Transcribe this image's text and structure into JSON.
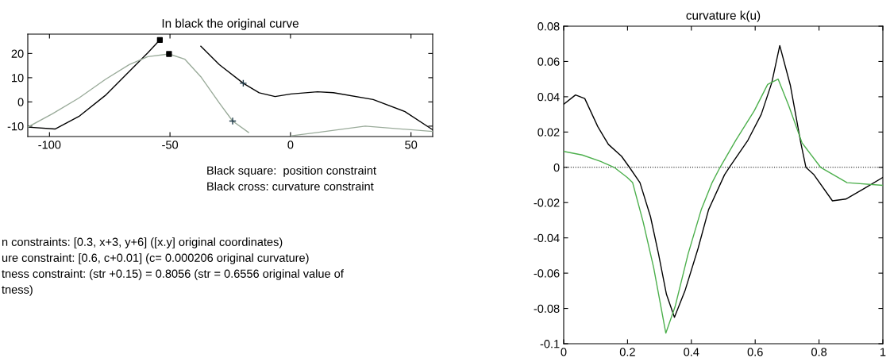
{
  "chart_data": [
    {
      "type": "line",
      "title": "In black the original curve",
      "xlim": [
        -109,
        59
      ],
      "ylim": [
        -14.3,
        28
      ],
      "xticks": [
        -100,
        -50,
        0,
        50
      ],
      "yticks": [
        -10,
        0,
        10,
        20
      ],
      "grid": false,
      "legend": false,
      "series": [
        {
          "color": "#000000",
          "x": [
            -109,
            -97.7,
            -87.8,
            -76.8,
            -66.9,
            -59.2,
            -54.2,
            -50.4,
            -43.8,
            -37.2,
            -29.5,
            -19.6,
            -13,
            -6.4,
            0.2,
            11.2,
            17.8,
            34.3,
            47.5,
            59
          ],
          "values": [
            -10.4,
            -11.2,
            -6,
            2.7,
            12.6,
            20.3,
            25.6,
            null,
            null,
            23,
            15.4,
            7.7,
            3.8,
            2.2,
            3.3,
            4.2,
            3.8,
            1,
            -4,
            -11.5
          ]
        },
        {
          "color": "#9aab9a",
          "x": [
            -109,
            -98.8,
            -87.8,
            -76.8,
            -66.9,
            -59.2,
            -50.4,
            -43.8,
            -37.2,
            -29.5,
            -24,
            -17.4,
            -10.8,
            0.2,
            11.2,
            31,
            59
          ],
          "values": [
            -10.4,
            -4.9,
            1.6,
            9.3,
            15.4,
            18.7,
            19.8,
            17.6,
            10.4,
            -0.5,
            -7.9,
            -12.6,
            null,
            -14,
            -12.6,
            -10,
            -12.2
          ]
        },
        {
          "type": "scatter",
          "marker": "square",
          "color": "#000000",
          "x": [
            -54.2,
            -50.4
          ],
          "values": [
            25.6,
            19.8
          ]
        },
        {
          "type": "scatter",
          "marker": "cross",
          "color": "#1f3a4a",
          "x": [
            -19.6,
            -24
          ],
          "values": [
            7.7,
            -7.9
          ]
        }
      ],
      "annotations": [
        "Black square:  position constraint",
        "Black cross: curvature constraint",
        "n constraints: [0.3, x+3, y+6] ([x.y] original coordinates)",
        "ure constraint: [0.6, c+0.01] (c= 0.000206 original curvature)",
        "tness constraint: (str +0.15) = 0.8056 (str = 0.6556 original value of",
        "tness)"
      ]
    },
    {
      "type": "line",
      "title": "curvature k(u)",
      "xlim": [
        0,
        1
      ],
      "ylim": [
        -0.1,
        0.08
      ],
      "xticks": [
        0,
        {
          "value": 0.2,
          "label": "0.2"
        },
        {
          "value": 0.4,
          "label": "0.4"
        },
        {
          "value": 0.6,
          "label": "0.6"
        },
        {
          "value": 0.8,
          "label": "0.8"
        },
        1
      ],
      "yticks": [
        {
          "value": -0.1,
          "label": "-0.1"
        },
        {
          "value": -0.08,
          "label": "-0.08"
        },
        {
          "value": -0.06,
          "label": "-0.06"
        },
        {
          "value": -0.04,
          "label": "-0.04"
        },
        {
          "value": -0.02,
          "label": "-0.02"
        },
        0,
        {
          "value": 0.02,
          "label": "0.02"
        },
        {
          "value": 0.04,
          "label": "0.04"
        },
        {
          "value": 0.06,
          "label": "0.06"
        },
        {
          "value": 0.08,
          "label": "0.08"
        }
      ],
      "grid": false,
      "legend": false,
      "ref_lines": [
        {
          "axis": "y",
          "value": 0,
          "color": "#000000",
          "line_style": "dotted"
        }
      ],
      "series": [
        {
          "color": "#000000",
          "x": [
            0,
            0.037,
            0.066,
            0.107,
            0.14,
            0.181,
            0.206,
            0.239,
            0.272,
            0.297,
            0.322,
            0.347,
            0.38,
            0.421,
            0.454,
            0.504,
            0.519,
            0.577,
            0.619,
            0.652,
            0.677,
            0.71,
            0.743,
            0.759,
            0.784,
            0.842,
            0.884,
            0.942,
            1
          ],
          "values": [
            0.0357,
            0.041,
            0.039,
            0.023,
            0.013,
            0.0063,
            0,
            -0.0087,
            -0.028,
            -0.049,
            -0.072,
            -0.085,
            -0.07,
            -0.046,
            -0.024,
            -0.0042,
            0,
            0.0153,
            0.03,
            0.048,
            0.069,
            0.0466,
            0.0138,
            0,
            -0.0042,
            -0.019,
            -0.018,
            -0.012,
            -0.0057
          ]
        },
        {
          "color": "#4caf4c",
          "x": [
            0,
            0.058,
            0.116,
            0.158,
            0.199,
            0.216,
            0.249,
            0.282,
            0.32,
            0.349,
            0.39,
            0.431,
            0.465,
            0.49,
            0.539,
            0.597,
            0.639,
            0.672,
            0.705,
            0.747,
            0.805,
            0.888,
            1
          ],
          "values": [
            0.009,
            0.007,
            0.0033,
            0,
            -0.0057,
            -0.0087,
            -0.031,
            -0.057,
            -0.094,
            -0.079,
            -0.049,
            -0.024,
            -0.0087,
            0,
            0.0153,
            0.032,
            0.047,
            0.05,
            0.035,
            0.0138,
            0,
            -0.0087,
            -0.0102
          ]
        }
      ]
    }
  ]
}
